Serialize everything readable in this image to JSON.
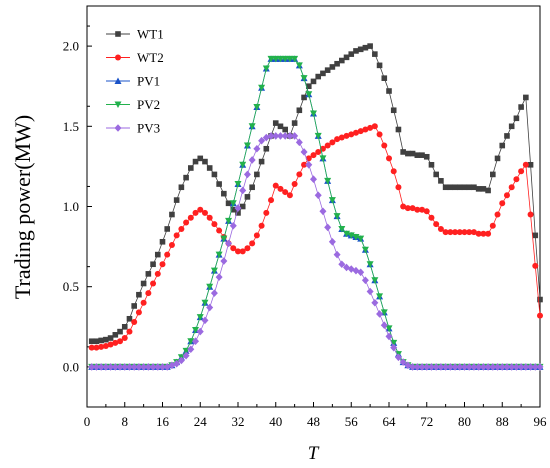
{
  "chart_data": {
    "type": "line",
    "title": "",
    "xlabel": "T",
    "ylabel": "Trading power(MW)",
    "xlim": [
      0,
      96
    ],
    "ylim": [
      -0.25,
      2.25
    ],
    "xticks": [
      "0",
      "8",
      "16",
      "24",
      "32",
      "40",
      "48",
      "56",
      "64",
      "72",
      "80",
      "88",
      "96"
    ],
    "yticks": [
      "0.0",
      "0.5",
      "1.0",
      "1.5",
      "2.0"
    ],
    "grid": false,
    "legend_position": "top-left",
    "x": [
      1,
      2,
      3,
      4,
      5,
      6,
      7,
      8,
      9,
      10,
      11,
      12,
      13,
      14,
      15,
      16,
      17,
      18,
      19,
      20,
      21,
      22,
      23,
      24,
      25,
      26,
      27,
      28,
      29,
      30,
      31,
      32,
      33,
      34,
      35,
      36,
      37,
      38,
      39,
      40,
      41,
      42,
      43,
      44,
      45,
      46,
      47,
      48,
      49,
      50,
      51,
      52,
      53,
      54,
      55,
      56,
      57,
      58,
      59,
      60,
      61,
      62,
      63,
      64,
      65,
      66,
      67,
      68,
      69,
      70,
      71,
      72,
      73,
      74,
      75,
      76,
      77,
      78,
      79,
      80,
      81,
      82,
      83,
      84,
      85,
      86,
      87,
      88,
      89,
      90,
      91,
      92,
      93,
      94,
      95,
      96
    ],
    "series": [
      {
        "name": "WT1",
        "color": "#404040",
        "marker": "square",
        "values": [
          0.16,
          0.16,
          0.165,
          0.17,
          0.18,
          0.2,
          0.22,
          0.25,
          0.3,
          0.38,
          0.45,
          0.52,
          0.58,
          0.64,
          0.7,
          0.78,
          0.86,
          0.95,
          1.04,
          1.12,
          1.18,
          1.24,
          1.28,
          1.3,
          1.28,
          1.24,
          1.2,
          1.14,
          1.08,
          1.02,
          0.98,
          0.96,
          1.0,
          1.06,
          1.12,
          1.2,
          1.28,
          1.36,
          1.44,
          1.52,
          1.5,
          1.48,
          1.44,
          1.52,
          1.6,
          1.68,
          1.75,
          1.78,
          1.81,
          1.83,
          1.85,
          1.87,
          1.89,
          1.91,
          1.93,
          1.95,
          1.97,
          1.98,
          1.99,
          2.0,
          1.95,
          1.88,
          1.8,
          1.72,
          1.6,
          1.48,
          1.34,
          1.33,
          1.33,
          1.32,
          1.32,
          1.31,
          1.26,
          1.2,
          1.16,
          1.12,
          1.12,
          1.12,
          1.12,
          1.12,
          1.12,
          1.12,
          1.11,
          1.11,
          1.1,
          1.2,
          1.3,
          1.38,
          1.44,
          1.5,
          1.55,
          1.62,
          1.68,
          1.26,
          0.82,
          0.42
        ]
      },
      {
        "name": "WT2",
        "color": "#ff2020",
        "marker": "circle",
        "values": [
          0.12,
          0.12,
          0.125,
          0.13,
          0.14,
          0.15,
          0.16,
          0.18,
          0.22,
          0.28,
          0.34,
          0.4,
          0.46,
          0.52,
          0.58,
          0.64,
          0.7,
          0.76,
          0.82,
          0.86,
          0.9,
          0.93,
          0.96,
          0.98,
          0.96,
          0.93,
          0.89,
          0.85,
          0.81,
          0.77,
          0.74,
          0.72,
          0.72,
          0.74,
          0.77,
          0.82,
          0.88,
          0.96,
          1.04,
          1.13,
          1.11,
          1.09,
          1.07,
          1.14,
          1.2,
          1.26,
          1.3,
          1.32,
          1.34,
          1.36,
          1.38,
          1.4,
          1.42,
          1.43,
          1.44,
          1.45,
          1.46,
          1.47,
          1.48,
          1.49,
          1.5,
          1.45,
          1.38,
          1.3,
          1.22,
          1.12,
          1.0,
          0.99,
          0.99,
          0.98,
          0.98,
          0.97,
          0.93,
          0.89,
          0.86,
          0.84,
          0.84,
          0.84,
          0.84,
          0.84,
          0.84,
          0.84,
          0.83,
          0.83,
          0.83,
          0.88,
          0.95,
          1.02,
          1.07,
          1.12,
          1.17,
          1.22,
          1.26,
          0.95,
          0.63,
          0.32
        ]
      },
      {
        "name": "PV1",
        "color": "#1a53c8",
        "marker": "triangle-up",
        "values": [
          0,
          0,
          0,
          0,
          0,
          0,
          0,
          0,
          0,
          0,
          0,
          0,
          0,
          0,
          0,
          0,
          0,
          0.01,
          0.03,
          0.06,
          0.1,
          0.16,
          0.23,
          0.31,
          0.4,
          0.5,
          0.6,
          0.7,
          0.8,
          0.91,
          1.02,
          1.14,
          1.26,
          1.38,
          1.5,
          1.62,
          1.74,
          1.86,
          1.92,
          1.92,
          1.92,
          1.92,
          1.92,
          1.92,
          1.88,
          1.8,
          1.7,
          1.58,
          1.44,
          1.3,
          1.16,
          1.04,
          0.94,
          0.86,
          0.83,
          0.82,
          0.81,
          0.8,
          0.73,
          0.64,
          0.54,
          0.44,
          0.34,
          0.24,
          0.15,
          0.08,
          0.03,
          0.01,
          0,
          0,
          0,
          0,
          0,
          0,
          0,
          0,
          0,
          0,
          0,
          0,
          0,
          0,
          0,
          0,
          0,
          0,
          0,
          0,
          0,
          0,
          0,
          0,
          0,
          0,
          0,
          0
        ]
      },
      {
        "name": "PV2",
        "color": "#22b14c",
        "marker": "triangle-down",
        "values": [
          0,
          0,
          0,
          0,
          0,
          0,
          0,
          0,
          0,
          0,
          0,
          0,
          0,
          0,
          0,
          0,
          0,
          0.01,
          0.03,
          0.06,
          0.1,
          0.16,
          0.23,
          0.31,
          0.4,
          0.5,
          0.6,
          0.7,
          0.8,
          0.91,
          1.02,
          1.14,
          1.26,
          1.38,
          1.5,
          1.62,
          1.74,
          1.86,
          1.92,
          1.92,
          1.92,
          1.92,
          1.92,
          1.92,
          1.88,
          1.8,
          1.7,
          1.58,
          1.44,
          1.3,
          1.16,
          1.04,
          0.94,
          0.86,
          0.83,
          0.82,
          0.81,
          0.8,
          0.73,
          0.64,
          0.54,
          0.44,
          0.34,
          0.24,
          0.15,
          0.08,
          0.03,
          0.01,
          0,
          0,
          0,
          0,
          0,
          0,
          0,
          0,
          0,
          0,
          0,
          0,
          0,
          0,
          0,
          0,
          0,
          0,
          0,
          0,
          0,
          0,
          0,
          0,
          0,
          0,
          0,
          0
        ]
      },
      {
        "name": "PV3",
        "color": "#9b6ae0",
        "marker": "diamond",
        "values": [
          0,
          0,
          0,
          0,
          0,
          0,
          0,
          0,
          0,
          0,
          0,
          0,
          0,
          0,
          0,
          0,
          0,
          0.01,
          0.02,
          0.04,
          0.07,
          0.11,
          0.16,
          0.22,
          0.29,
          0.37,
          0.46,
          0.56,
          0.66,
          0.77,
          0.88,
          0.99,
          1.1,
          1.2,
          1.29,
          1.36,
          1.41,
          1.43,
          1.44,
          1.44,
          1.44,
          1.44,
          1.44,
          1.44,
          1.4,
          1.34,
          1.26,
          1.17,
          1.07,
          0.97,
          0.87,
          0.78,
          0.7,
          0.64,
          0.62,
          0.61,
          0.6,
          0.59,
          0.54,
          0.47,
          0.4,
          0.33,
          0.26,
          0.19,
          0.12,
          0.06,
          0.03,
          0.01,
          0,
          0,
          0,
          0,
          0,
          0,
          0,
          0,
          0,
          0,
          0,
          0,
          0,
          0,
          0,
          0,
          0,
          0,
          0,
          0,
          0,
          0,
          0,
          0,
          0,
          0,
          0,
          0
        ]
      }
    ]
  }
}
